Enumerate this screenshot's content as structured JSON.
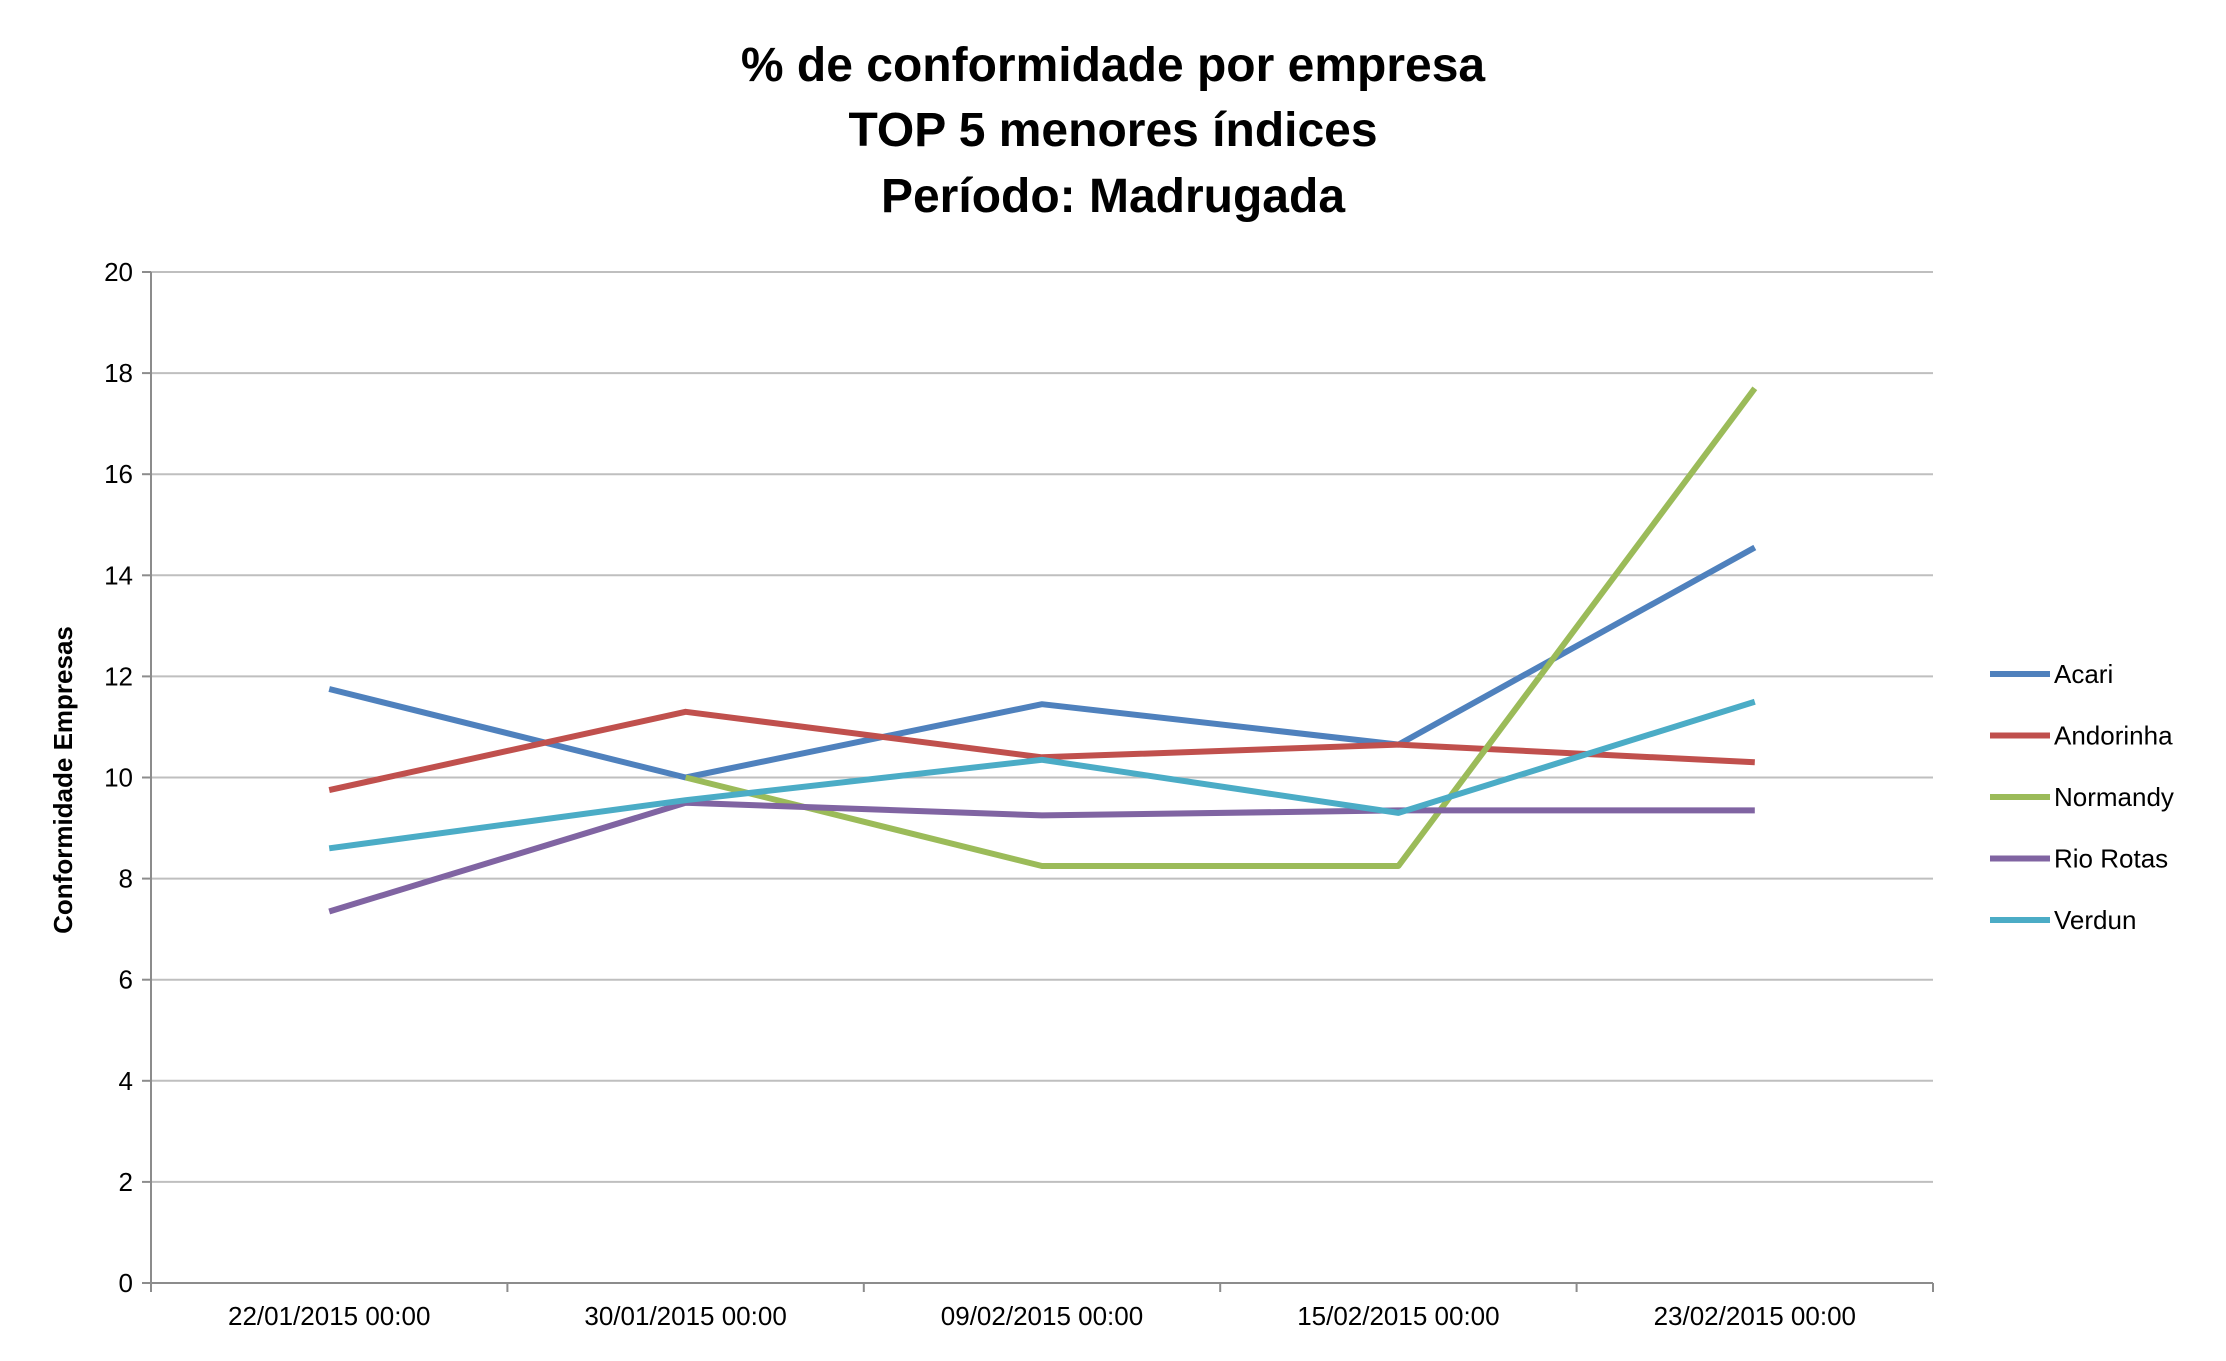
{
  "chart_data": {
    "type": "line",
    "title_lines": [
      "% de conformidade por empresa",
      "TOP 5 menores índices",
      "Período: Madrugada"
    ],
    "xlabel": "",
    "ylabel": "Conformidade Empresas",
    "categories": [
      "22/01/2015 00:00",
      "30/01/2015 00:00",
      "09/02/2015 00:00",
      "15/02/2015 00:00",
      "23/02/2015 00:00"
    ],
    "ylim": [
      0,
      20
    ],
    "yticks": [
      0,
      2,
      4,
      6,
      8,
      10,
      12,
      14,
      16,
      18,
      20
    ],
    "grid": "horizontal",
    "legend_position": "right",
    "series": [
      {
        "name": "Acari",
        "color": "#4F81BD",
        "values": [
          11.75,
          10.0,
          11.45,
          10.65,
          14.55
        ]
      },
      {
        "name": "Andorinha",
        "color": "#C0504D",
        "values": [
          9.75,
          11.3,
          10.4,
          10.65,
          10.3
        ]
      },
      {
        "name": "Normandy",
        "color": "#9BBB59",
        "values": [
          null,
          10.0,
          8.25,
          8.25,
          17.7
        ]
      },
      {
        "name": "Rio Rotas",
        "color": "#8064A2",
        "values": [
          7.35,
          9.5,
          9.25,
          9.35,
          9.35
        ]
      },
      {
        "name": "Verdun",
        "color": "#4BACC6",
        "values": [
          8.6,
          9.55,
          10.35,
          9.3,
          11.5
        ]
      }
    ]
  }
}
